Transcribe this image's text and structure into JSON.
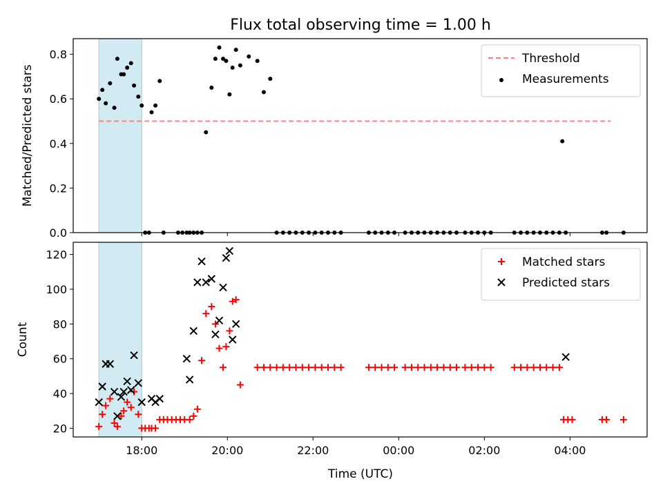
{
  "chart_data": {
    "title": "Flux total observing time = 1.00 h",
    "xlabel": "Time (UTC)",
    "x_unit": "hours (17.0 = 17:00 UTC, values above 24 fall after midnight)",
    "xlim": [
      16.4,
      29.8
    ],
    "xticks": [
      {
        "v": 18,
        "label": "18:00"
      },
      {
        "v": 20,
        "label": "20:00"
      },
      {
        "v": 22,
        "label": "22:00"
      },
      {
        "v": 24,
        "label": "00:00"
      },
      {
        "v": 26,
        "label": "02:00"
      },
      {
        "v": 28,
        "label": "04:00"
      }
    ],
    "shaded_span": {
      "x": [
        17.0,
        18.0
      ],
      "color": "#add8e6"
    },
    "panels": [
      {
        "id": "ratio",
        "type": "scatter",
        "ylabel": "Matched/Predicted stars",
        "ylim": [
          0,
          0.87
        ],
        "yticks": [
          {
            "v": 0,
            "label": "0.0"
          },
          {
            "v": 0.2,
            "label": "0.2"
          },
          {
            "v": 0.4,
            "label": "0.4"
          },
          {
            "v": 0.6,
            "label": "0.6"
          },
          {
            "v": 0.8,
            "label": "0.8"
          }
        ],
        "legend_position": "top-right",
        "threshold": {
          "name": "Threshold",
          "y": 0.5,
          "x": [
            17.0,
            28.95
          ],
          "color": "#ff7f7f",
          "style": "dashed"
        },
        "series": [
          {
            "name": "Measurements",
            "marker": "dot",
            "color": "#000000",
            "x": [
              17.0,
              17.08,
              17.16,
              17.26,
              17.36,
              17.43,
              17.52,
              17.58,
              17.66,
              17.75,
              17.82,
              17.92,
              18.0,
              18.08,
              18.17,
              18.23,
              18.32,
              18.42,
              18.51,
              18.85,
              18.95,
              19.05,
              19.12,
              19.21,
              19.3,
              19.4,
              19.5,
              19.63,
              19.72,
              19.81,
              19.9,
              19.97,
              20.05,
              20.12,
              20.2,
              20.3,
              20.5,
              20.7,
              20.85,
              21.0,
              21.15,
              21.3,
              21.45,
              21.6,
              21.75,
              21.9,
              22.05,
              22.2,
              22.35,
              22.5,
              22.65,
              23.3,
              23.45,
              23.6,
              23.75,
              23.9,
              24.15,
              24.3,
              24.45,
              24.6,
              24.75,
              24.9,
              25.05,
              25.2,
              25.35,
              25.55,
              25.7,
              25.85,
              26.0,
              26.15,
              26.7,
              26.85,
              27.0,
              27.15,
              27.3,
              27.45,
              27.6,
              27.75,
              27.82,
              27.9,
              28.75,
              28.85,
              29.25
            ],
            "y": [
              0.6,
              0.64,
              0.58,
              0.67,
              0.56,
              0.78,
              0.71,
              0.71,
              0.74,
              0.76,
              0.66,
              0.61,
              0.57,
              0.0,
              0.0,
              0.54,
              0.57,
              0.68,
              0.0,
              0.0,
              0.0,
              0.0,
              0.0,
              0.0,
              0.0,
              0.0,
              0.45,
              0.65,
              0.78,
              0.83,
              0.78,
              0.77,
              0.62,
              0.74,
              0.82,
              0.75,
              0.79,
              0.77,
              0.63,
              0.69,
              0.0,
              0.0,
              0.0,
              0.0,
              0.0,
              0.0,
              0.0,
              0.0,
              0.0,
              0.0,
              0.0,
              0.0,
              0.0,
              0.0,
              0.0,
              0.0,
              0.0,
              0.0,
              0.0,
              0.0,
              0.0,
              0.0,
              0.0,
              0.0,
              0.0,
              0.0,
              0.0,
              0.0,
              0.0,
              0.0,
              0.0,
              0.0,
              0.0,
              0.0,
              0.0,
              0.0,
              0.0,
              0.0,
              0.41,
              0.0,
              0.0,
              0.0,
              0.0
            ]
          }
        ]
      },
      {
        "id": "counts",
        "type": "scatter",
        "ylabel": "Count",
        "ylim": [
          15,
          127
        ],
        "yticks": [
          {
            "v": 20,
            "label": "20"
          },
          {
            "v": 40,
            "label": "40"
          },
          {
            "v": 60,
            "label": "60"
          },
          {
            "v": 80,
            "label": "80"
          },
          {
            "v": 100,
            "label": "100"
          },
          {
            "v": 120,
            "label": "120"
          }
        ],
        "legend_position": "top-right",
        "series": [
          {
            "name": "Matched stars",
            "marker": "plus",
            "color": "#ff0000",
            "x": [
              17.0,
              17.08,
              17.16,
              17.26,
              17.36,
              17.43,
              17.52,
              17.58,
              17.66,
              17.75,
              17.82,
              17.92,
              18.0,
              18.08,
              18.17,
              18.23,
              18.32,
              18.42,
              18.51,
              18.6,
              18.7,
              18.8,
              18.9,
              19.0,
              19.12,
              19.21,
              19.3,
              19.4,
              19.5,
              19.63,
              19.72,
              19.81,
              19.9,
              19.97,
              20.05,
              20.12,
              20.2,
              20.3,
              20.7,
              20.85,
              21.0,
              21.15,
              21.3,
              21.45,
              21.6,
              21.75,
              21.9,
              22.05,
              22.2,
              22.35,
              22.5,
              22.65,
              23.3,
              23.45,
              23.6,
              23.75,
              23.9,
              24.15,
              24.3,
              24.45,
              24.6,
              24.75,
              24.9,
              25.05,
              25.2,
              25.35,
              25.55,
              25.7,
              25.85,
              26.0,
              26.15,
              26.7,
              26.85,
              27.0,
              27.15,
              27.3,
              27.45,
              27.6,
              27.75,
              27.85,
              27.95,
              28.05,
              28.75,
              28.85,
              29.25
            ],
            "y": [
              21,
              28,
              33,
              37,
              23,
              21,
              27,
              30,
              35,
              32,
              41,
              28,
              20,
              20,
              20,
              20,
              20,
              25,
              25,
              25,
              25,
              25,
              25,
              25,
              25,
              27,
              31,
              59,
              86,
              90,
              80,
              66,
              55,
              67,
              76,
              93,
              94,
              45,
              55,
              55,
              55,
              55,
              55,
              55,
              55,
              55,
              55,
              55,
              55,
              55,
              55,
              55,
              55,
              55,
              55,
              55,
              55,
              55,
              55,
              55,
              55,
              55,
              55,
              55,
              55,
              55,
              55,
              55,
              55,
              55,
              55,
              55,
              55,
              55,
              55,
              55,
              55,
              55,
              55,
              25,
              25,
              25,
              25,
              25,
              25
            ]
          },
          {
            "name": "Predicted stars",
            "marker": "x",
            "color": "#000000",
            "x": [
              17.0,
              17.08,
              17.16,
              17.26,
              17.36,
              17.43,
              17.52,
              17.58,
              17.66,
              17.75,
              17.82,
              17.92,
              18.0,
              18.23,
              18.32,
              18.42,
              19.05,
              19.12,
              19.21,
              19.3,
              19.4,
              19.5,
              19.63,
              19.72,
              19.81,
              19.9,
              19.97,
              20.05,
              20.12,
              20.2,
              27.9
            ],
            "y": [
              35,
              44,
              57,
              57,
              41,
              27,
              38,
              41,
              47,
              42,
              62,
              46,
              35,
              37,
              35,
              37,
              60,
              48,
              76,
              104,
              116,
              104,
              106,
              74,
              82,
              101,
              118,
              122,
              71,
              80,
              61
            ]
          }
        ]
      }
    ]
  }
}
